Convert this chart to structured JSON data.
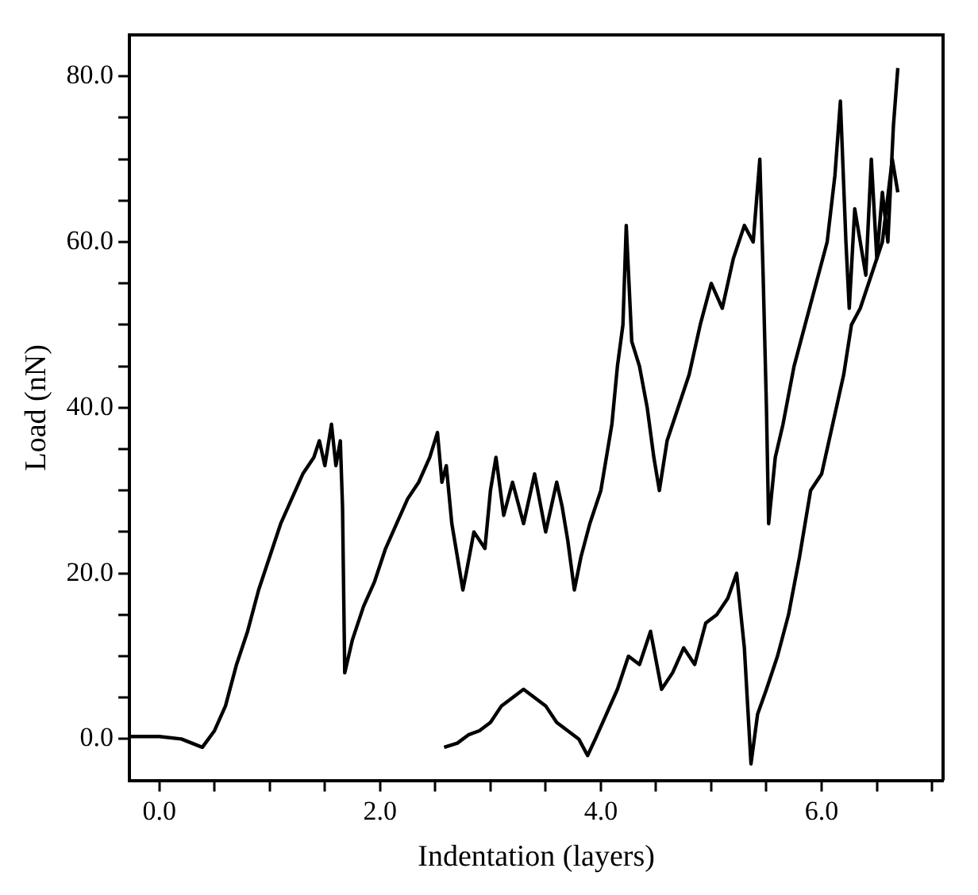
{
  "chart_data": {
    "type": "line",
    "xlabel": "Indentation (layers)",
    "ylabel": "Load (nN)",
    "xlim": [
      -0.27,
      7.1
    ],
    "ylim": [
      -5,
      85
    ],
    "xticks": [
      {
        "value": 0,
        "label": "0.0"
      },
      {
        "value": 0.5,
        "label": null
      },
      {
        "value": 1,
        "label": null
      },
      {
        "value": 1.5,
        "label": null
      },
      {
        "value": 2,
        "label": "2.0"
      },
      {
        "value": 2.5,
        "label": null
      },
      {
        "value": 3,
        "label": null
      },
      {
        "value": 3.5,
        "label": null
      },
      {
        "value": 4,
        "label": "4.0"
      },
      {
        "value": 4.5,
        "label": null
      },
      {
        "value": 5,
        "label": null
      },
      {
        "value": 5.5,
        "label": null
      },
      {
        "value": 6,
        "label": "6.0"
      },
      {
        "value": 6.5,
        "label": null
      },
      {
        "value": 7,
        "label": null
      }
    ],
    "yticks": [
      {
        "value": 0,
        "label": "0.0"
      },
      {
        "value": 5,
        "label": null
      },
      {
        "value": 10,
        "label": null
      },
      {
        "value": 15,
        "label": null
      },
      {
        "value": 20,
        "label": "20.0"
      },
      {
        "value": 25,
        "label": null
      },
      {
        "value": 30,
        "label": null
      },
      {
        "value": 35,
        "label": null
      },
      {
        "value": 40,
        "label": "40.0"
      },
      {
        "value": 45,
        "label": null
      },
      {
        "value": 50,
        "label": null
      },
      {
        "value": 55,
        "label": null
      },
      {
        "value": 60,
        "label": "60.0"
      },
      {
        "value": 65,
        "label": null
      },
      {
        "value": 70,
        "label": null
      },
      {
        "value": 75,
        "label": null
      },
      {
        "value": 80,
        "label": "80.0"
      }
    ],
    "grid": false,
    "legend": false,
    "marker": "none",
    "line_style": "solid",
    "series": [
      {
        "color": "#000000",
        "x": [
          -0.27,
          0,
          0.2,
          0.39,
          0.5,
          0.6,
          0.7,
          0.8,
          0.9,
          1.0,
          1.1,
          1.2,
          1.3,
          1.4,
          1.45,
          1.5,
          1.56,
          1.6,
          1.64,
          1.66,
          1.68,
          1.75,
          1.85,
          1.95,
          2.05,
          2.15,
          2.25,
          2.35,
          2.45,
          2.52,
          2.56,
          2.6,
          2.65,
          2.7,
          2.75,
          2.78,
          2.85,
          2.95,
          3.0,
          3.05,
          3.12,
          3.2,
          3.3,
          3.4,
          3.5,
          3.6,
          3.65,
          3.7,
          3.76,
          3.82,
          3.9,
          4.0,
          4.1,
          4.15,
          4.2,
          4.23,
          4.28,
          4.35,
          4.42,
          4.48,
          4.53,
          4.6,
          4.7,
          4.8,
          4.9,
          5.0,
          5.1,
          5.2,
          5.3,
          5.38,
          5.44,
          5.47,
          5.5,
          5.52,
          5.58,
          5.65,
          5.75,
          5.85,
          5.95,
          6.05,
          6.12,
          6.17,
          6.22,
          6.25,
          6.3,
          6.35,
          6.4,
          6.45,
          6.5,
          6.55,
          6.6,
          6.65,
          6.69
        ],
        "values": [
          0.3,
          0.3,
          0,
          -1,
          1,
          4,
          9,
          13,
          18,
          22,
          26,
          29,
          32,
          34,
          36,
          33,
          38,
          33,
          36,
          28,
          8,
          12,
          16,
          19,
          23,
          26,
          29,
          31,
          34,
          37,
          31,
          33,
          26,
          22,
          18,
          20,
          25,
          23,
          30,
          34,
          27,
          31,
          26,
          32,
          25,
          31,
          28,
          24,
          18,
          22,
          26,
          30,
          38,
          45,
          50,
          62,
          48,
          45,
          40,
          34,
          30,
          36,
          40,
          44,
          50,
          55,
          52,
          58,
          62,
          60,
          70,
          56,
          40,
          26,
          34,
          38,
          45,
          50,
          55,
          60,
          68,
          77,
          60,
          52,
          64,
          60,
          56,
          70,
          58,
          66,
          60,
          74,
          81
        ]
      },
      {
        "color": "#000000",
        "x": [
          2.58,
          2.7,
          2.8,
          2.9,
          3.0,
          3.1,
          3.2,
          3.3,
          3.4,
          3.5,
          3.6,
          3.7,
          3.8,
          3.88,
          3.95,
          4.05,
          4.15,
          4.25,
          4.35,
          4.45,
          4.55,
          4.65,
          4.75,
          4.85,
          4.95,
          5.05,
          5.15,
          5.23,
          5.3,
          5.36,
          5.42,
          5.5,
          5.6,
          5.7,
          5.8,
          5.9,
          6.0,
          6.1,
          6.2,
          6.27,
          6.35,
          6.45,
          6.55,
          6.64,
          6.69
        ],
        "values": [
          -1,
          -0.5,
          0.5,
          1,
          2,
          4,
          5,
          6,
          5,
          4,
          2,
          1,
          0,
          -2,
          0,
          3,
          6,
          10,
          9,
          13,
          6,
          8,
          11,
          9,
          14,
          15,
          17,
          20,
          11,
          -3,
          3,
          6,
          10,
          15,
          22,
          30,
          32,
          38,
          44,
          50,
          52,
          56,
          60,
          70,
          66
        ]
      }
    ]
  }
}
